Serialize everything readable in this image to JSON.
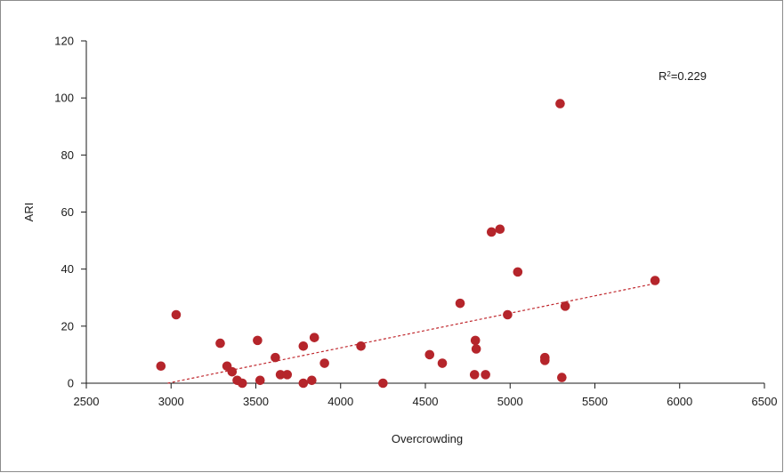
{
  "chart_data": {
    "type": "scatter",
    "title": "",
    "xlabel": "Overcrowding",
    "ylabel": "ARI",
    "xlim": [
      2500,
      6500
    ],
    "ylim": [
      0,
      120
    ],
    "xticks": [
      2500,
      3000,
      3500,
      4000,
      4500,
      5000,
      5500,
      6000,
      6500
    ],
    "yticks": [
      0,
      20,
      40,
      60,
      80,
      100,
      120
    ],
    "grid": false,
    "legend": "none",
    "colors": {
      "points": "#b5252b",
      "trendline": "#c0282e",
      "axis": "#1a1a1a"
    },
    "annotation": {
      "base": "R",
      "sup": "2",
      "rest": "=0.229"
    },
    "trendline": {
      "style": "dashed",
      "x": [
        2980,
        5860
      ],
      "y": [
        0,
        35
      ]
    },
    "series": [
      {
        "x": [
          2940,
          3030,
          3290,
          3330,
          3360,
          3390,
          3420,
          3510,
          3525,
          3615,
          3645,
          3685,
          3780,
          3780,
          3830,
          3845,
          3905,
          4120,
          4250,
          4525,
          4600,
          4705,
          4790,
          4795,
          4800,
          4855,
          4890,
          4940,
          4985,
          5045,
          5205,
          5205,
          5295,
          5305,
          5325,
          5855
        ],
        "y": [
          6,
          24,
          14,
          6,
          4,
          1,
          0,
          15,
          1,
          9,
          3,
          3,
          13,
          0,
          1,
          16,
          7,
          13,
          0,
          10,
          7,
          28,
          3,
          15,
          12,
          3,
          53,
          54,
          24,
          39,
          9,
          8,
          98,
          2,
          27,
          36
        ]
      }
    ]
  }
}
